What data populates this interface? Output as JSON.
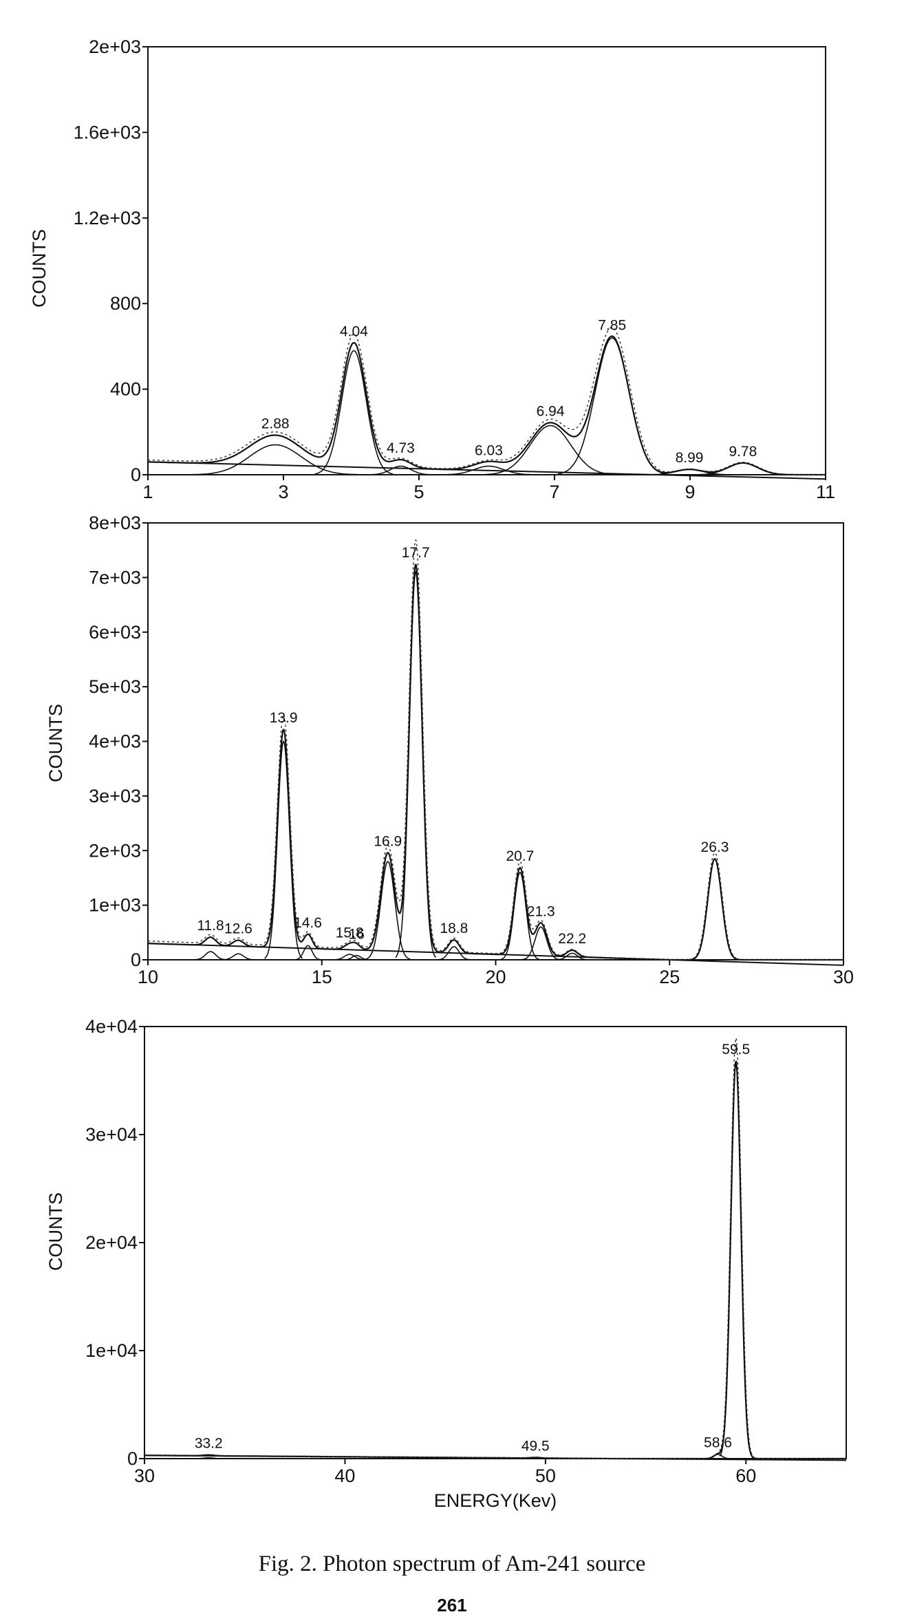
{
  "caption": "Fig. 2.  Photon spectrum of Am-241 source",
  "page_number": "261",
  "chart_data": [
    {
      "type": "line",
      "title": "",
      "xlabel": "",
      "ylabel": "COUNTS",
      "xlim": [
        1,
        11
      ],
      "ylim": [
        0,
        2000
      ],
      "x_ticks": [
        1,
        3,
        5,
        7,
        9,
        11
      ],
      "x_tick_labels": [
        "1",
        "3",
        "5",
        "7",
        "9",
        "11"
      ],
      "y_ticks": [
        0,
        400,
        800,
        1200,
        1600,
        2000
      ],
      "y_tick_labels": [
        "0",
        "400",
        "800",
        "1.2e+03",
        "1.6e+03",
        "2e+03"
      ],
      "background": {
        "start": 60,
        "end": -20
      },
      "peaks": [
        {
          "label": "2.88",
          "x": 2.88,
          "height": 140,
          "sigma": 0.38
        },
        {
          "label": "4.04",
          "x": 4.04,
          "height": 580,
          "sigma": 0.18
        },
        {
          "label": "4.73",
          "x": 4.73,
          "height": 40,
          "sigma": 0.15
        },
        {
          "label": "6.03",
          "x": 6.03,
          "height": 40,
          "sigma": 0.22
        },
        {
          "label": "6.94",
          "x": 6.94,
          "height": 230,
          "sigma": 0.3
        },
        {
          "label": "7.85",
          "x": 7.85,
          "height": 640,
          "sigma": 0.25
        },
        {
          "label": "8.99",
          "x": 8.99,
          "height": 25,
          "sigma": 0.2
        },
        {
          "label": "9.78",
          "x": 9.78,
          "height": 55,
          "sigma": 0.22
        }
      ]
    },
    {
      "type": "line",
      "title": "",
      "xlabel": "",
      "ylabel": "COUNTS",
      "xlim": [
        10,
        30
      ],
      "ylim": [
        0,
        8000
      ],
      "x_ticks": [
        10,
        15,
        20,
        25,
        30
      ],
      "x_tick_labels": [
        "10",
        "15",
        "20",
        "25",
        "30"
      ],
      "y_ticks": [
        0,
        1000,
        2000,
        3000,
        4000,
        5000,
        6000,
        7000,
        8000
      ],
      "y_tick_labels": [
        "0",
        "1e+03",
        "2e+03",
        "3e+03",
        "4e+03",
        "5e+03",
        "6e+03",
        "7e+03",
        "8e+03"
      ],
      "background": {
        "start": 300,
        "end": -100
      },
      "peaks": [
        {
          "label": "11.8",
          "x": 11.8,
          "height": 150,
          "sigma": 0.15
        },
        {
          "label": "12.6",
          "x": 12.6,
          "height": 110,
          "sigma": 0.15
        },
        {
          "label": "13.9",
          "x": 13.9,
          "height": 4000,
          "sigma": 0.17
        },
        {
          "label": "14.6",
          "x": 14.6,
          "height": 260,
          "sigma": 0.12
        },
        {
          "label": "15.8",
          "x": 15.8,
          "height": 100,
          "sigma": 0.15
        },
        {
          "label": "16",
          "x": 16.0,
          "height": 80,
          "sigma": 0.12
        },
        {
          "label": "16.9",
          "x": 16.9,
          "height": 1800,
          "sigma": 0.2
        },
        {
          "label": "17.7",
          "x": 17.7,
          "height": 7100,
          "sigma": 0.18
        },
        {
          "label": "18.8",
          "x": 18.8,
          "height": 240,
          "sigma": 0.15
        },
        {
          "label": "20.7",
          "x": 20.7,
          "height": 1600,
          "sigma": 0.17
        },
        {
          "label": "21.3",
          "x": 21.3,
          "height": 600,
          "sigma": 0.17
        },
        {
          "label": "22.2",
          "x": 22.2,
          "height": 120,
          "sigma": 0.15
        },
        {
          "label": "26.3",
          "x": 26.3,
          "height": 1850,
          "sigma": 0.2
        }
      ]
    },
    {
      "type": "line",
      "title": "",
      "xlabel": "ENERGY(Kev)",
      "ylabel": "COUNTS",
      "xlim": [
        30,
        65
      ],
      "ylim": [
        0,
        40000
      ],
      "x_ticks": [
        30,
        40,
        50,
        60
      ],
      "x_tick_labels": [
        "30",
        "40",
        "50",
        "60"
      ],
      "y_ticks": [
        0,
        10000,
        20000,
        30000,
        40000
      ],
      "y_tick_labels": [
        "0",
        "1e+04",
        "2e+04",
        "3e+04",
        "4e+04"
      ],
      "background": {
        "start": 300,
        "end": -150
      },
      "peaks": [
        {
          "label": "33.2",
          "x": 33.2,
          "height": 80,
          "sigma": 0.25
        },
        {
          "label": "49.5",
          "x": 49.5,
          "height": 60,
          "sigma": 0.25
        },
        {
          "label": "58.6",
          "x": 58.6,
          "height": 400,
          "sigma": 0.2
        },
        {
          "label": "59.5",
          "x": 59.5,
          "height": 36800,
          "sigma": 0.25
        }
      ]
    }
  ]
}
